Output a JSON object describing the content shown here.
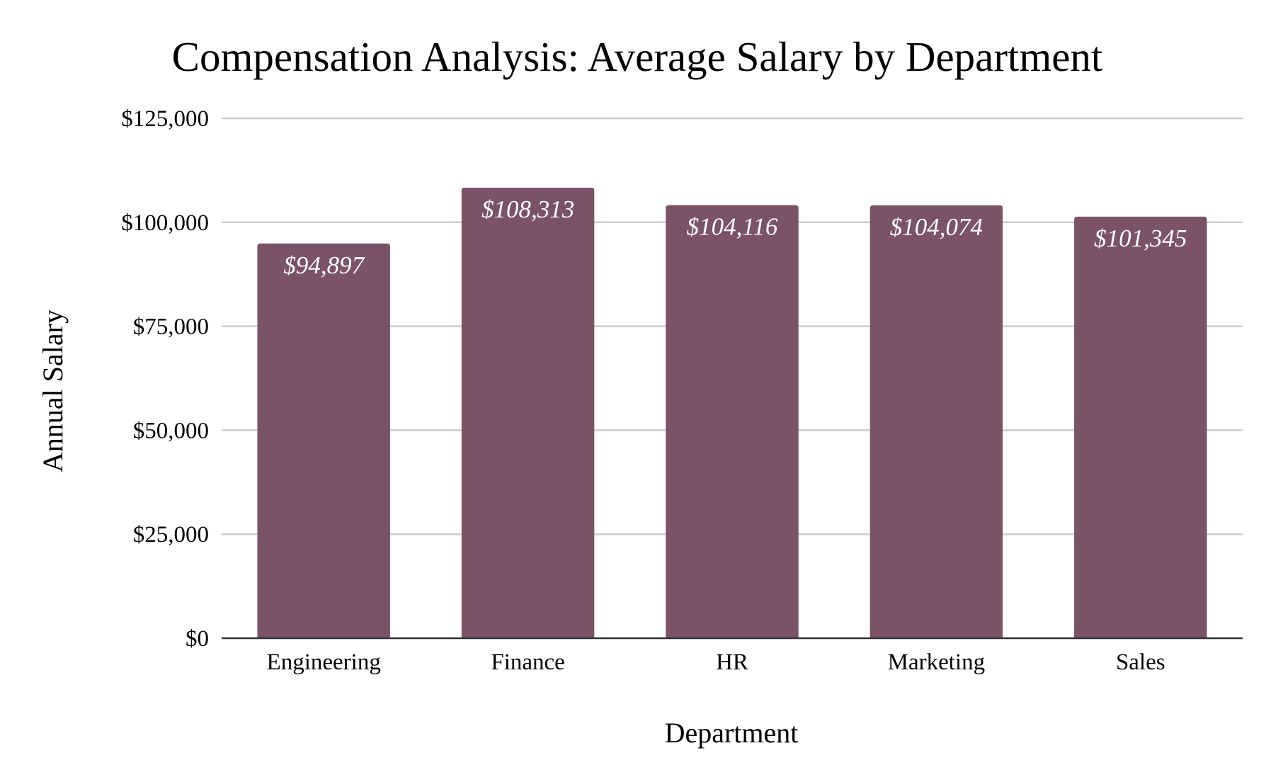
{
  "colors": {
    "bar": "#7b5366",
    "grid": "#cccccc",
    "baseline": "#333333",
    "label_text": "#ffffff"
  },
  "chart_data": {
    "type": "bar",
    "title": "Compensation Analysis: Average Salary by Department",
    "xlabel": "Department",
    "ylabel": "Annual Salary",
    "categories": [
      "Engineering",
      "Finance",
      "HR",
      "Marketing",
      "Sales"
    ],
    "values": [
      94897,
      108313,
      104116,
      104074,
      101345
    ],
    "value_labels": [
      "$94,897",
      "$108,313",
      "$104,116",
      "$104,074",
      "$101,345"
    ],
    "ylim": [
      0,
      125000
    ],
    "yticks": [
      0,
      25000,
      50000,
      75000,
      100000,
      125000
    ],
    "ytick_labels": [
      "$0",
      "$25,000",
      "$50,000",
      "$75,000",
      "$100,000",
      "$125,000"
    ],
    "grid": true,
    "legend": "none"
  }
}
